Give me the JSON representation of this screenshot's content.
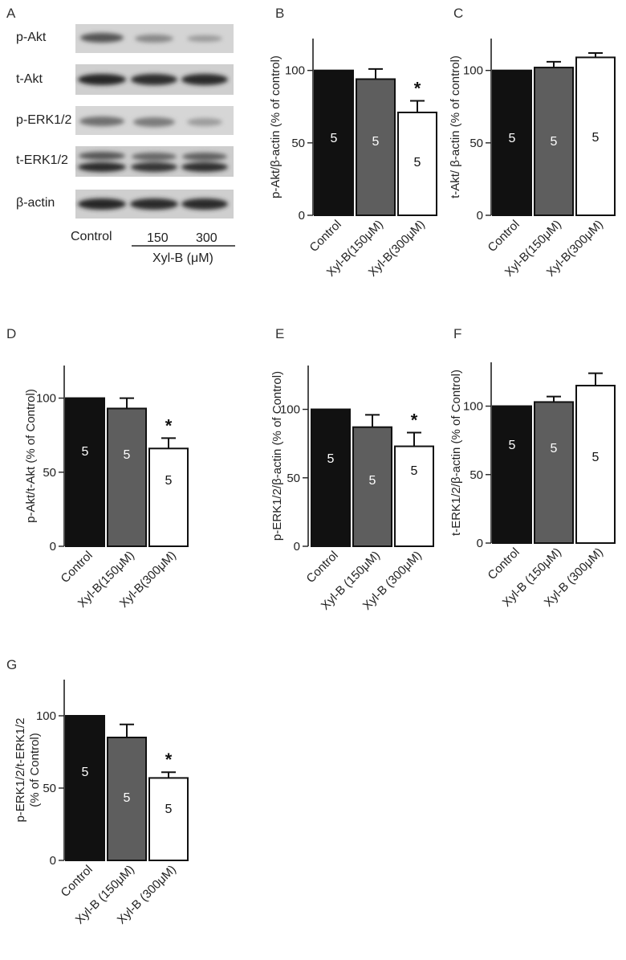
{
  "panel_a": {
    "label": "A",
    "rows": [
      "p-Akt",
      "t-Akt",
      "p-ERK1/2",
      "t-ERK1/2",
      "β-actin"
    ],
    "lane_labels": [
      "Control",
      "150",
      "300"
    ],
    "treatment_label": "Xyl-B (μM)"
  },
  "colors": {
    "control": "#111111",
    "xyl150": "#5e5e5e",
    "xyl300": "#ffffff",
    "axis": "#222222"
  },
  "chart_data": [
    {
      "panel": "B",
      "type": "bar",
      "ylabel": "p-Akt/β-actin (% of control)",
      "categories": [
        "Control",
        "Xyl-B(150μM)",
        "Xyl-B(300μM)"
      ],
      "values": [
        100,
        94,
        71
      ],
      "errors": [
        0,
        7,
        8
      ],
      "n": [
        "5",
        "5",
        "5"
      ],
      "significance": [
        "",
        "",
        "*"
      ],
      "yticks": [
        "0",
        "50",
        "100"
      ],
      "ylim": [
        0,
        122
      ]
    },
    {
      "panel": "C",
      "type": "bar",
      "ylabel": "t-Akt/ β-actin (% of control)",
      "categories": [
        "Control",
        "Xyl-B(150μM)",
        "Xyl-B(300μM)"
      ],
      "values": [
        100,
        102,
        109
      ],
      "errors": [
        0,
        4,
        3
      ],
      "n": [
        "5",
        "5",
        "5"
      ],
      "significance": [
        "",
        "",
        ""
      ],
      "yticks": [
        "0",
        "50",
        "100"
      ],
      "ylim": [
        0,
        122
      ]
    },
    {
      "panel": "D",
      "type": "bar",
      "ylabel": "p-Akt/t-Akt (% of Control)",
      "categories": [
        "Control",
        "Xyl-B(150μM)",
        "Xyl-B(300μM)"
      ],
      "values": [
        100,
        93,
        66
      ],
      "errors": [
        0,
        7,
        7
      ],
      "n": [
        "5",
        "5",
        "5"
      ],
      "significance": [
        "",
        "",
        "*"
      ],
      "yticks": [
        "0",
        "50",
        "100"
      ],
      "ylim": [
        0,
        122
      ]
    },
    {
      "panel": "E",
      "type": "bar",
      "ylabel": "p-ERK1/2/β-actin (% of Control)",
      "categories": [
        "Control",
        "Xyl-B (150μM)",
        "Xyl-B (300μM)"
      ],
      "values": [
        100,
        87,
        73
      ],
      "errors": [
        0,
        9,
        10
      ],
      "n": [
        "5",
        "5",
        "5"
      ],
      "significance": [
        "",
        "",
        "*"
      ],
      "yticks": [
        "0",
        "50",
        "100"
      ],
      "ylim": [
        0,
        132
      ]
    },
    {
      "panel": "F",
      "type": "bar",
      "ylabel": "t-ERK1/2/β-actin (% of Control)",
      "categories": [
        "Control",
        "Xyl-B (150μM)",
        "Xyl-B (300μM)"
      ],
      "values": [
        100,
        103,
        115
      ],
      "errors": [
        0,
        4,
        9
      ],
      "n": [
        "5",
        "5",
        "5"
      ],
      "significance": [
        "",
        "",
        ""
      ],
      "yticks": [
        "0",
        "50",
        "100"
      ],
      "ylim": [
        0,
        132
      ]
    },
    {
      "panel": "G",
      "type": "bar",
      "ylabel": "p-ERK1/2/t-ERK1/2",
      "ylabel2": "(% of Control)",
      "categories": [
        "Control",
        "Xyl-B (150μM)",
        "Xyl-B (300μM)"
      ],
      "values": [
        100,
        85,
        57
      ],
      "errors": [
        0,
        9,
        4
      ],
      "n": [
        "5",
        "5",
        "5"
      ],
      "significance": [
        "",
        "",
        "*"
      ],
      "yticks": [
        "0",
        "50",
        "100"
      ],
      "ylim": [
        0,
        125
      ]
    }
  ]
}
